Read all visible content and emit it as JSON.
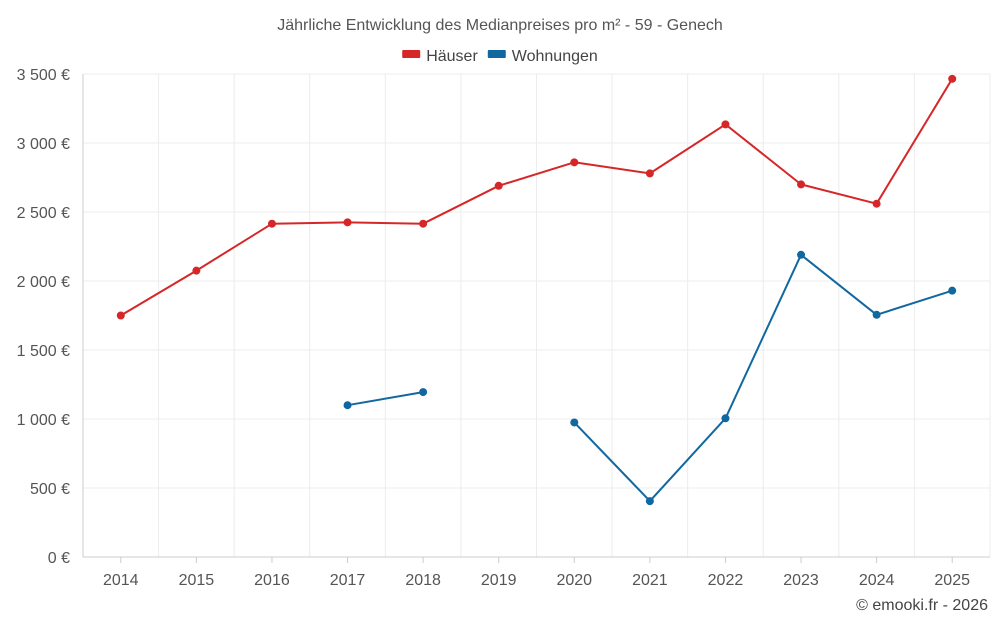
{
  "chart_data": {
    "type": "line",
    "title": "Jährliche Entwicklung des Medianpreises pro m² - 59 - Genech",
    "xlabel": "",
    "ylabel": "",
    "categories": [
      "2014",
      "2015",
      "2016",
      "2017",
      "2018",
      "2019",
      "2020",
      "2021",
      "2022",
      "2023",
      "2024",
      "2025"
    ],
    "ylim": [
      0,
      3500
    ],
    "yticks": [
      0,
      500,
      1000,
      1500,
      2000,
      2500,
      3000,
      3500
    ],
    "ytick_labels": [
      "0 €",
      "500 €",
      "1 000 €",
      "1 500 €",
      "2 000 €",
      "2 500 €",
      "3 000 €",
      "3 500 €"
    ],
    "grid": true,
    "legend_position": "top-center",
    "series": [
      {
        "name": "Häuser",
        "color": "#d62728",
        "values": [
          1750,
          2075,
          2415,
          2425,
          2415,
          2690,
          2860,
          2780,
          3135,
          2700,
          2560,
          3465
        ]
      },
      {
        "name": "Wohnungen",
        "color": "#1168a0",
        "values": [
          null,
          null,
          null,
          1100,
          1195,
          null,
          975,
          405,
          1005,
          2190,
          1755,
          1930
        ]
      }
    ]
  },
  "credit": "© emooki.fr - 2026"
}
